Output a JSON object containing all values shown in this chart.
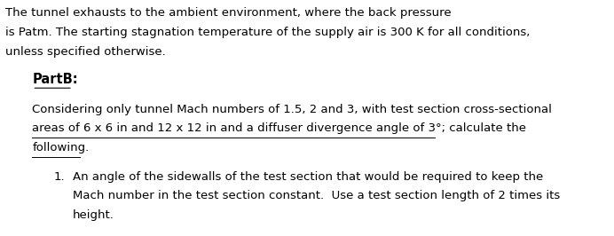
{
  "background_color": "#ffffff",
  "fig_width": 6.92,
  "fig_height": 2.66,
  "dpi": 100,
  "intro_lines": [
    "The tunnel exhausts to the ambient environment, where the back pressure",
    "is Patm. The starting stagnation temperature of the supply air is 300 K for all conditions,",
    "unless specified otherwise."
  ],
  "partb_label": "PartB:",
  "paragraph": [
    "Considering only tunnel Mach numbers of 1.5, 2 and 3, with test section cross-sectional",
    "areas of 6 x 6 in and 12 x 12 in and a diffuser divergence angle of 3°; calculate the",
    "following."
  ],
  "paragraph_underline_lines": [
    1,
    2
  ],
  "item1_lines": [
    "An angle of the sidewalls of the test section that would be required to keep the",
    "Mach number in the test section constant.  Use a test section length of 2 times its",
    "height."
  ],
  "font_size_intro": 9.5,
  "font_size_partb": 10.5,
  "font_size_para": 9.5,
  "font_size_item": 9.5,
  "text_color": "#000000",
  "font_family": "DejaVu Sans"
}
